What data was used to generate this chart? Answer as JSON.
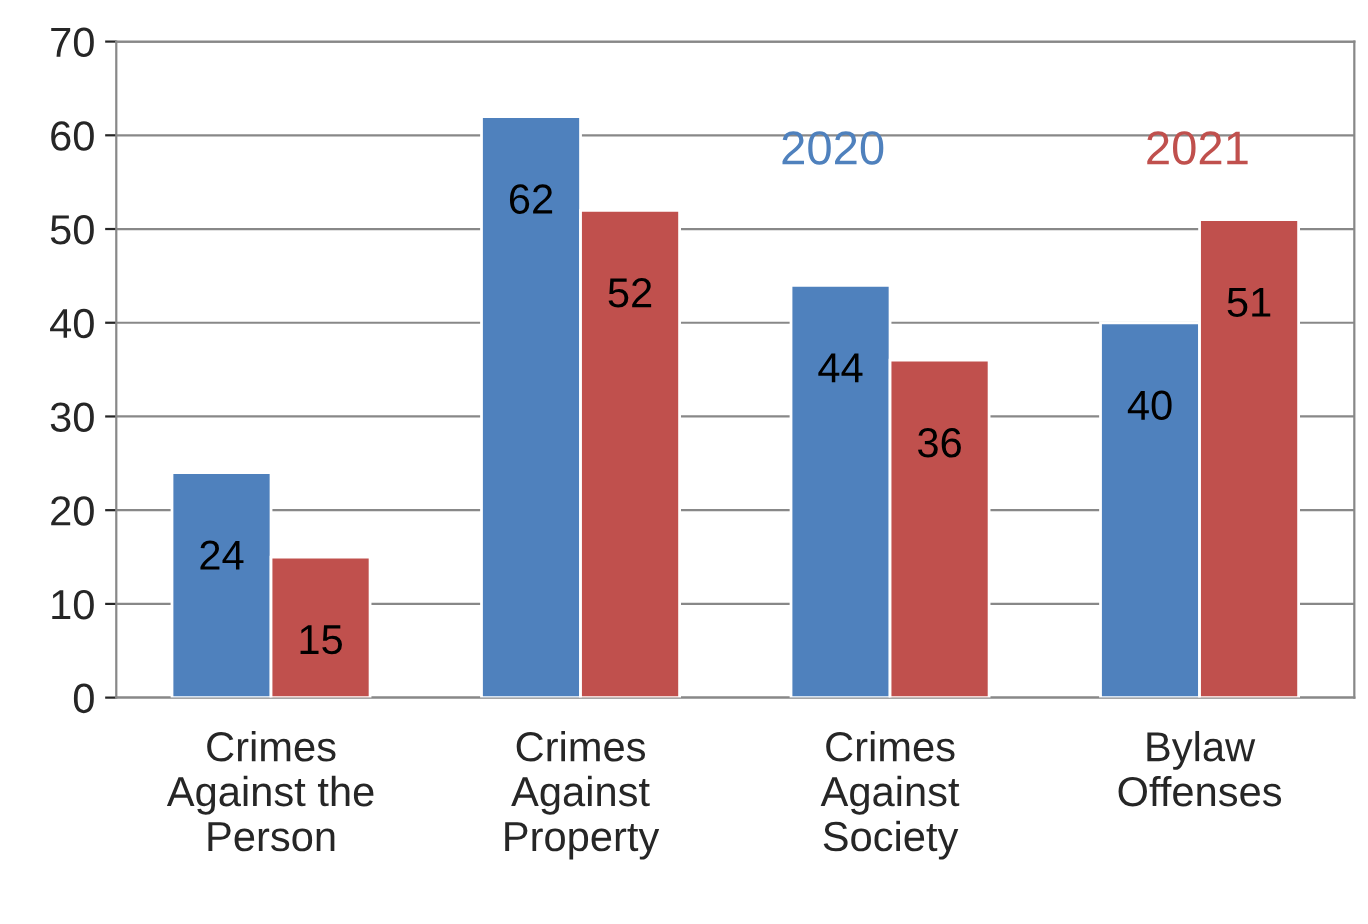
{
  "chart_data": {
    "type": "bar",
    "categories": [
      "Crimes\nAgainst the\nPerson",
      "Crimes\nAgainst\nProperty",
      "Crimes\nAgainst\nSociety",
      "Bylaw\nOffenses"
    ],
    "series": [
      {
        "name": "2020",
        "color": "#4f81bd",
        "values": [
          24,
          62,
          44,
          40
        ]
      },
      {
        "name": "2021",
        "color": "#c0504d",
        "values": [
          15,
          52,
          36,
          51
        ]
      }
    ],
    "ylim": [
      0,
      70
    ],
    "yticks": [
      0,
      10,
      20,
      30,
      40,
      50,
      60,
      70
    ],
    "grid": "y",
    "legend": "top right",
    "data_labels": true
  }
}
